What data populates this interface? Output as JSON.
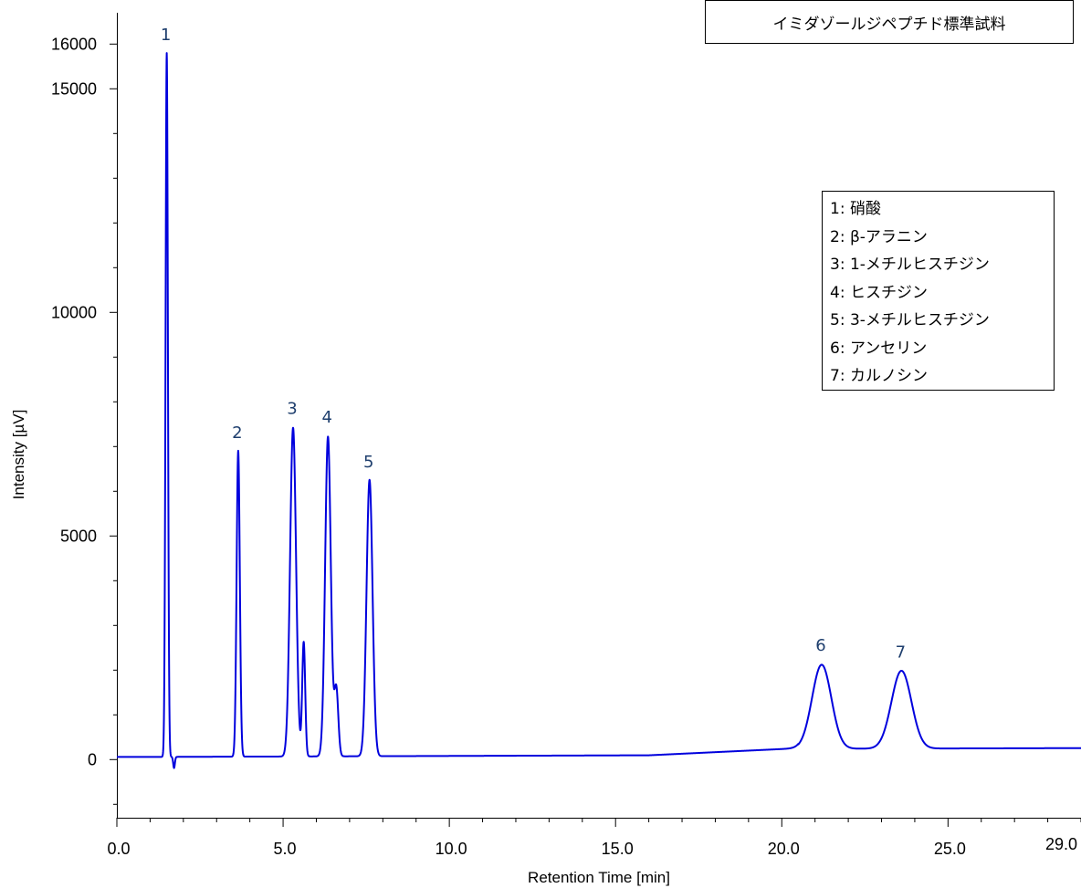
{
  "chart_data": {
    "type": "line",
    "title": "イミダゾールジペプチド標準試料",
    "xlabel": "Retention Time [min]",
    "ylabel": "Intensity [µV]",
    "xlim": [
      0.0,
      29.0
    ],
    "ylim": [
      -1300,
      16700
    ],
    "x_ticks": [
      0.0,
      5.0,
      10.0,
      15.0,
      20.0,
      25.0
    ],
    "x_tick_labels": [
      "0.0",
      "5.0",
      "10.0",
      "15.0",
      "20.0",
      "25.0"
    ],
    "x_end_label": "29.0",
    "y_ticks": [
      0,
      5000,
      10000,
      15000,
      16000
    ],
    "y_tick_labels": [
      "0",
      "5000",
      "10000",
      "15000",
      "16000"
    ],
    "grid": false,
    "legend": [
      "1: 硝酸",
      "2: β-アラニン",
      "3: 1-メチルヒスチジン",
      "4: ヒスチジン",
      "5: 3-メチルヒスチジン",
      "6: アンセリン",
      "7: カルノシン"
    ],
    "legend_position": "right",
    "line_color": "#0000dd",
    "peak_label_color": "#1f3f6e",
    "peaks": [
      {
        "label": "1",
        "rt": 1.5,
        "height": 15800
      },
      {
        "label": "2",
        "rt": 3.65,
        "height": 6900
      },
      {
        "label": "3",
        "rt": 5.3,
        "height": 7450
      },
      {
        "label": "4",
        "rt": 6.35,
        "height": 7250
      },
      {
        "label": "5",
        "rt": 7.6,
        "height": 6250
      },
      {
        "label": "6",
        "rt": 21.2,
        "height": 2150
      },
      {
        "label": "7",
        "rt": 23.6,
        "height": 2000
      }
    ]
  }
}
